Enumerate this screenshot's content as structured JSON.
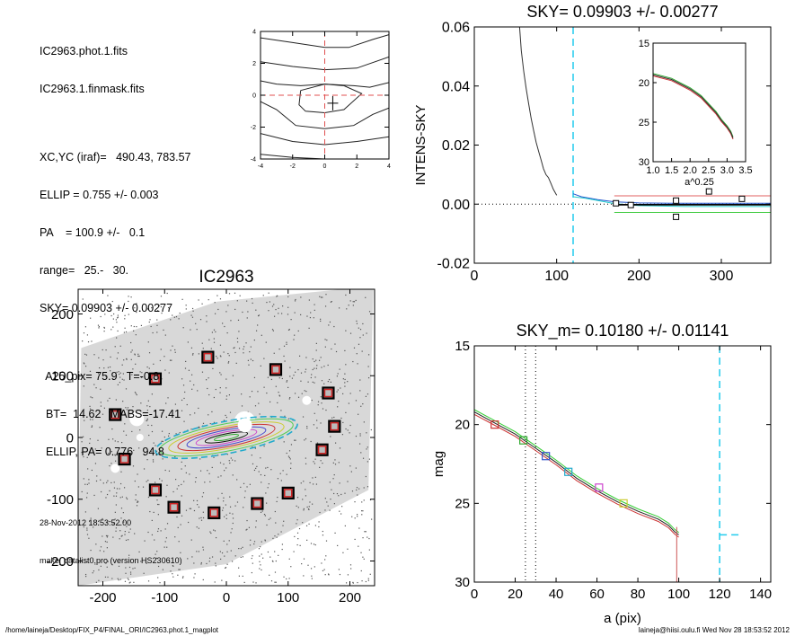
{
  "header_info": {
    "lines_a": [
      "IC2963.phot.1.fits",
      "IC2963.1.finmask.fits"
    ],
    "lines_b": [
      "XC,YC (iraf)=   490.43, 783.57",
      "ELLIP = 0.755 +/- 0.003",
      "PA    = 100.9 +/-   0.1",
      "range=   25.-   30.",
      "SKY= 0.09903 +/- 0.00277"
    ],
    "lines_c": [
      "  A25_pix= 75.9   T=-0.8",
      "  BT=  14.62   MABS=-17.41",
      "  ELLIP, PA= 0.776   94.8"
    ],
    "timestamp": "28-Nov-2012 18:53:52.00",
    "program": "make_datalist0.pro (version HS230610)"
  },
  "footer": {
    "path": "/home/laineja/Desktop/FIX_P4/FINAL_ORI/IC2963.phot.1_magplot",
    "user": "laineja@hiisi.oulu.fi  Wed Nov 28 18:53:52 2012"
  },
  "chart_data": [
    {
      "id": "contour_center",
      "type": "line",
      "title": "",
      "xlim": [
        -4,
        4
      ],
      "ylim": [
        -4,
        4
      ],
      "xticks": [
        "-4",
        "-2",
        "0",
        "2",
        "4"
      ],
      "yticks": [
        "-4",
        "-2",
        "0",
        "2",
        "4"
      ],
      "contours": [
        [
          [
            -4,
            3.6
          ],
          [
            -2,
            3.3
          ],
          [
            0,
            3.0
          ],
          [
            1.5,
            3.0
          ],
          [
            3,
            3.5
          ],
          [
            4,
            3.8
          ]
        ],
        [
          [
            -4,
            2.1
          ],
          [
            -2,
            1.8
          ],
          [
            0,
            1.6
          ],
          [
            2,
            1.7
          ],
          [
            4,
            2.4
          ]
        ],
        [
          [
            -4,
            0.9
          ],
          [
            -3,
            0.7
          ],
          [
            -1.5,
            0.6
          ],
          [
            0,
            0.7
          ],
          [
            1.8,
            0.6
          ],
          [
            2.8,
            0.5
          ],
          [
            4,
            0.8
          ]
        ],
        [
          [
            -1.5,
            0.3
          ],
          [
            -1.6,
            -0.6
          ],
          [
            -1.2,
            -1.0
          ],
          [
            0,
            -1.1
          ],
          [
            1.2,
            -0.9
          ],
          [
            2.3,
            0.1
          ],
          [
            1.2,
            0.6
          ],
          [
            0,
            0.7
          ],
          [
            -1.5,
            0.3
          ]
        ],
        [
          [
            -4,
            -0.4
          ],
          [
            -3,
            -0.9
          ],
          [
            -1.8,
            -1.9
          ],
          [
            0,
            -2.1
          ],
          [
            1.8,
            -1.9
          ],
          [
            3,
            -1.2
          ],
          [
            4,
            -0.8
          ]
        ],
        [
          [
            -4,
            -2.4
          ],
          [
            -2,
            -2.9
          ],
          [
            0,
            -3.1
          ],
          [
            2,
            -2.9
          ],
          [
            4,
            -2.6
          ]
        ],
        [
          [
            -4,
            -3.7
          ],
          [
            -2,
            -3.9
          ],
          [
            0,
            -4.0
          ]
        ]
      ],
      "marker": [
        0.5,
        -0.5
      ]
    },
    {
      "id": "sky_profile",
      "type": "line",
      "title": "SKY= 0.09903 +/- 0.00277",
      "xlabel": "",
      "ylabel": "INTENS-SKY",
      "xlim": [
        0,
        360
      ],
      "ylim": [
        -0.02,
        0.06
      ],
      "xticks": [
        "0",
        "100",
        "200",
        "300"
      ],
      "yticks": [
        "-0.02",
        "0.00",
        "0.02",
        "0.04",
        "0.06"
      ],
      "profile": {
        "x": [
          55,
          57,
          60,
          63,
          66,
          69,
          72,
          75,
          78,
          81,
          84,
          87,
          90,
          93,
          96,
          100
        ],
        "y": [
          0.06,
          0.052,
          0.045,
          0.039,
          0.034,
          0.029,
          0.025,
          0.021,
          0.018,
          0.015,
          0.012,
          0.01,
          0.009,
          0.007,
          0.005,
          0.003
        ]
      },
      "sky_boxes": {
        "x": [
          172,
          190,
          245,
          245,
          285,
          325
        ],
        "y": [
          0.0003,
          -0.0003,
          0.0012,
          -0.0043,
          0.0043,
          0.0018
        ]
      },
      "sky_vline": 120,
      "levels": {
        "upper": 0.0028,
        "lower": -0.0028
      },
      "inset": {
        "xlabel": "a^0.25",
        "xlim": [
          1.0,
          3.5
        ],
        "ylim": [
          15,
          30
        ],
        "xticks": [
          "1.0",
          "1.5",
          "2.0",
          "2.5",
          "3.0",
          "3.5"
        ],
        "yticks": [
          "15",
          "20",
          "25",
          "30"
        ],
        "x": [
          1.0,
          1.5,
          2.0,
          2.3,
          2.5,
          2.7,
          2.85,
          3.0,
          3.1,
          3.16
        ],
        "y": [
          19.0,
          19.6,
          20.8,
          21.8,
          22.8,
          23.8,
          24.8,
          25.6,
          26.3,
          27.0
        ]
      }
    },
    {
      "id": "galaxy_image",
      "type": "scatter",
      "title": "IC2963",
      "xlim": [
        -240,
        240
      ],
      "ylim": [
        -240,
        240
      ],
      "xticks": [
        "-200",
        "-100",
        "0",
        "100",
        "200"
      ],
      "yticks": [
        "-200",
        "-100",
        "0",
        "100",
        "200"
      ],
      "sky_boxes": {
        "x": [
          -30,
          80,
          -115,
          165,
          -180,
          175,
          -165,
          155,
          -115,
          100,
          -85,
          50,
          -20
        ],
        "y": [
          130,
          110,
          95,
          72,
          37,
          18,
          -35,
          -20,
          -85,
          -90,
          -113,
          -107,
          -122
        ]
      },
      "ellipses": [
        {
          "a": 117,
          "b": 26,
          "color": "#22aacc",
          "dashed": true
        },
        {
          "a": 110,
          "b": 22,
          "color": "#55cc55"
        },
        {
          "a": 95,
          "b": 18,
          "color": "#cccc33"
        },
        {
          "a": 80,
          "b": 15,
          "color": "#cc3333"
        },
        {
          "a": 65,
          "b": 12,
          "color": "#4444cc"
        },
        {
          "a": 50,
          "b": 9,
          "color": "#cc44cc"
        },
        {
          "a": 35,
          "b": 6,
          "color": "#111111"
        },
        {
          "a": 20,
          "b": 3.5,
          "color": "#33aa33"
        }
      ]
    },
    {
      "id": "mag_profile",
      "type": "line",
      "title": "SKY_m=  0.10180 +/- 0.01141",
      "xlabel": "a (pix)",
      "ylabel": "mag",
      "xlim": [
        0,
        145
      ],
      "ylim": [
        30,
        15
      ],
      "xticks": [
        "0",
        "20",
        "40",
        "60",
        "80",
        "100",
        "120",
        "140"
      ],
      "yticks": [
        "15",
        "20",
        "25",
        "30"
      ],
      "x": [
        0,
        10,
        20,
        30,
        40,
        50,
        60,
        70,
        80,
        90,
        95,
        98,
        100
      ],
      "y": [
        19.2,
        19.9,
        20.6,
        21.5,
        22.4,
        23.4,
        24.2,
        24.9,
        25.5,
        26.0,
        26.4,
        26.8,
        27.0
      ],
      "markers": [
        {
          "x": 10,
          "y": 20.0,
          "color": "#cc3333"
        },
        {
          "x": 24,
          "y": 21.0,
          "color": "#33aa33"
        },
        {
          "x": 35,
          "y": 22.0,
          "color": "#3355cc"
        },
        {
          "x": 46,
          "y": 23.0,
          "color": "#22aacc"
        },
        {
          "x": 61,
          "y": 24.0,
          "color": "#cc44cc"
        },
        {
          "x": 73,
          "y": 25.0,
          "color": "#cccc33"
        }
      ],
      "dotted_vlines": [
        25,
        30
      ],
      "sky_vline": 120,
      "sky_level": 27.0
    }
  ]
}
